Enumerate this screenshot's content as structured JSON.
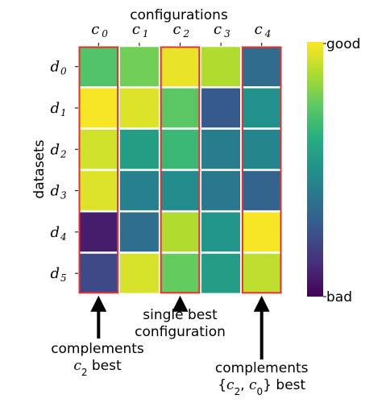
{
  "chart_data": {
    "type": "heatmap",
    "title": "",
    "xlabel": "configurations",
    "ylabel": "datasets",
    "x_ticks": [
      {
        "base": "c",
        "sub": "0"
      },
      {
        "base": "c",
        "sub": "1"
      },
      {
        "base": "c",
        "sub": "2"
      },
      {
        "base": "c",
        "sub": "3"
      },
      {
        "base": "c",
        "sub": "4"
      }
    ],
    "y_ticks": [
      {
        "base": "d",
        "sub": "0"
      },
      {
        "base": "d",
        "sub": "1"
      },
      {
        "base": "d",
        "sub": "2"
      },
      {
        "base": "d",
        "sub": "3"
      },
      {
        "base": "d",
        "sub": "4"
      },
      {
        "base": "d",
        "sub": "5"
      }
    ],
    "values": [
      [
        0.72,
        0.78,
        0.97,
        0.88,
        0.35
      ],
      [
        0.99,
        0.95,
        0.74,
        0.28,
        0.5
      ],
      [
        0.93,
        0.56,
        0.67,
        0.42,
        0.45
      ],
      [
        0.95,
        0.43,
        0.48,
        0.4,
        0.32
      ],
      [
        0.08,
        0.36,
        0.88,
        0.52,
        0.99
      ],
      [
        0.22,
        0.94,
        0.76,
        0.55,
        0.9
      ]
    ],
    "value_range": [
      0,
      1
    ],
    "colormap": "viridis",
    "colorbar": {
      "max_label": "good",
      "min_label": "bad"
    },
    "highlighted_columns": [
      0,
      2,
      4
    ],
    "highlight_color": "#e8302f",
    "annotations": [
      {
        "column": 0,
        "lines": [
          "complements",
          "c2 best"
        ],
        "math_parts": [
          [
            "complements"
          ],
          [
            {
              "base": "c",
              "sub": "2"
            },
            " best"
          ]
        ]
      },
      {
        "column": 2,
        "lines": [
          "single best",
          "configuration"
        ],
        "math_parts": [
          [
            "single best"
          ],
          [
            "configuration"
          ]
        ]
      },
      {
        "column": 4,
        "lines": [
          "complements",
          "{c2, c0} best"
        ],
        "math_parts": [
          [
            "complements"
          ],
          [
            "{",
            {
              "base": "c",
              "sub": "2"
            },
            ", ",
            {
              "base": "c",
              "sub": "0"
            },
            "} best"
          ]
        ]
      }
    ]
  }
}
